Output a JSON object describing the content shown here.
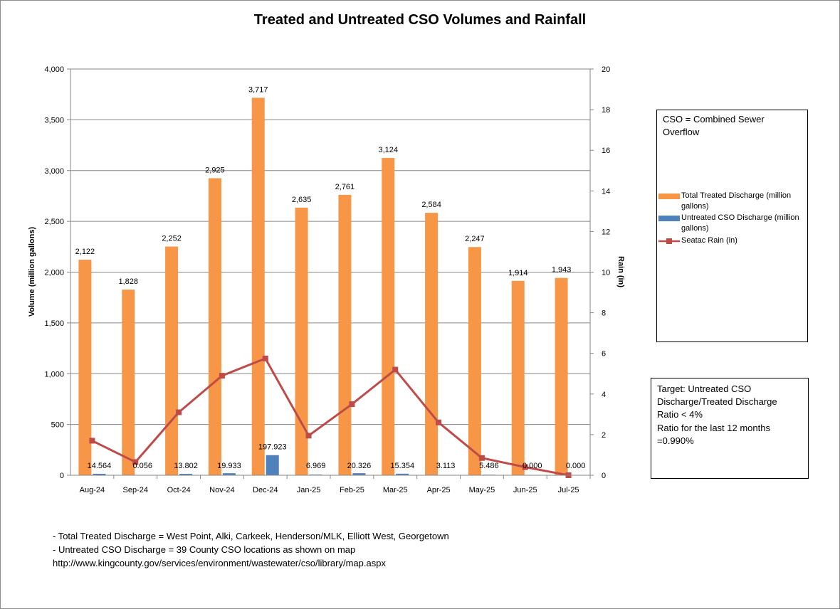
{
  "chart_data": {
    "type": "bar",
    "title": "Treated and Untreated CSO Volumes and Rainfall",
    "categories": [
      "Aug-24",
      "Sep-24",
      "Oct-24",
      "Nov-24",
      "Dec-24",
      "Jan-25",
      "Feb-25",
      "Mar-25",
      "Apr-25",
      "May-25",
      "Jun-25",
      "Jul-25"
    ],
    "ylabel": "Volume (million gallons)",
    "y2label": "Rain (in)",
    "ylim": [
      0,
      4000
    ],
    "y2lim": [
      0,
      20
    ],
    "yticks": [
      "0",
      "500",
      "1,000",
      "1,500",
      "2,000",
      "2,500",
      "3,000",
      "3,500",
      "4,000"
    ],
    "y2ticks": [
      "0",
      "2",
      "4",
      "6",
      "8",
      "10",
      "12",
      "14",
      "16",
      "18",
      "20"
    ],
    "grid": true,
    "series": [
      {
        "name": "Total Treated Discharge (million gallons)",
        "kind": "bar",
        "axis": "left",
        "color": "#f79646",
        "values": [
          2122,
          1828,
          2252,
          2925,
          3717,
          2635,
          2761,
          3124,
          2584,
          2247,
          1914,
          1943
        ],
        "labels": [
          "2,122",
          "1,828",
          "2,252",
          "2,925",
          "3,717",
          "2,635",
          "2,761",
          "3,124",
          "2,584",
          "2,247",
          "1,914",
          "1,943"
        ]
      },
      {
        "name": "Untreated CSO Discharge (million gallons)",
        "kind": "bar",
        "axis": "left",
        "color": "#4f81bd",
        "values": [
          14.564,
          0.056,
          13.802,
          19.933,
          197.923,
          6.969,
          20.326,
          15.354,
          3.113,
          5.486,
          0.0,
          0.0
        ],
        "labels": [
          "14.564",
          "0.056",
          "13.802",
          "19.933",
          "197.923",
          "6.969",
          "20.326",
          "15.354",
          "3.113",
          "5.486",
          "0.000",
          "0.000"
        ]
      },
      {
        "name": "Seatac Rain (in)",
        "kind": "line",
        "axis": "right",
        "color": "#be4b48",
        "values": [
          1.7,
          0.65,
          3.1,
          4.9,
          5.75,
          1.95,
          3.5,
          5.2,
          2.6,
          0.85,
          0.4,
          0.0
        ]
      }
    ]
  },
  "legend_box": {
    "heading": "CSO = Combined Sewer Overflow",
    "items": [
      {
        "label": "Total Treated Discharge (million gallons)",
        "color": "#f79646"
      },
      {
        "label": "Untreated CSO Discharge (million gallons)",
        "color": "#4f81bd"
      },
      {
        "label": "Seatac Rain (in)",
        "color": "#be4b48"
      }
    ]
  },
  "target_box": {
    "line1": "Target: Untreated CSO Discharge/Treated Discharge Ratio < 4%",
    "line2": "Ratio for the last 12 months =0.990%"
  },
  "notes": {
    "line1": "- Total Treated Discharge = West Point, Alki, Carkeek, Henderson/MLK, Elliott West, Georgetown",
    "line2": "- Untreated CSO Discharge = 39  County CSO locations as shown on map",
    "line3": "http://www.kingcounty.gov/services/environment/wastewater/cso/library/map.aspx"
  }
}
